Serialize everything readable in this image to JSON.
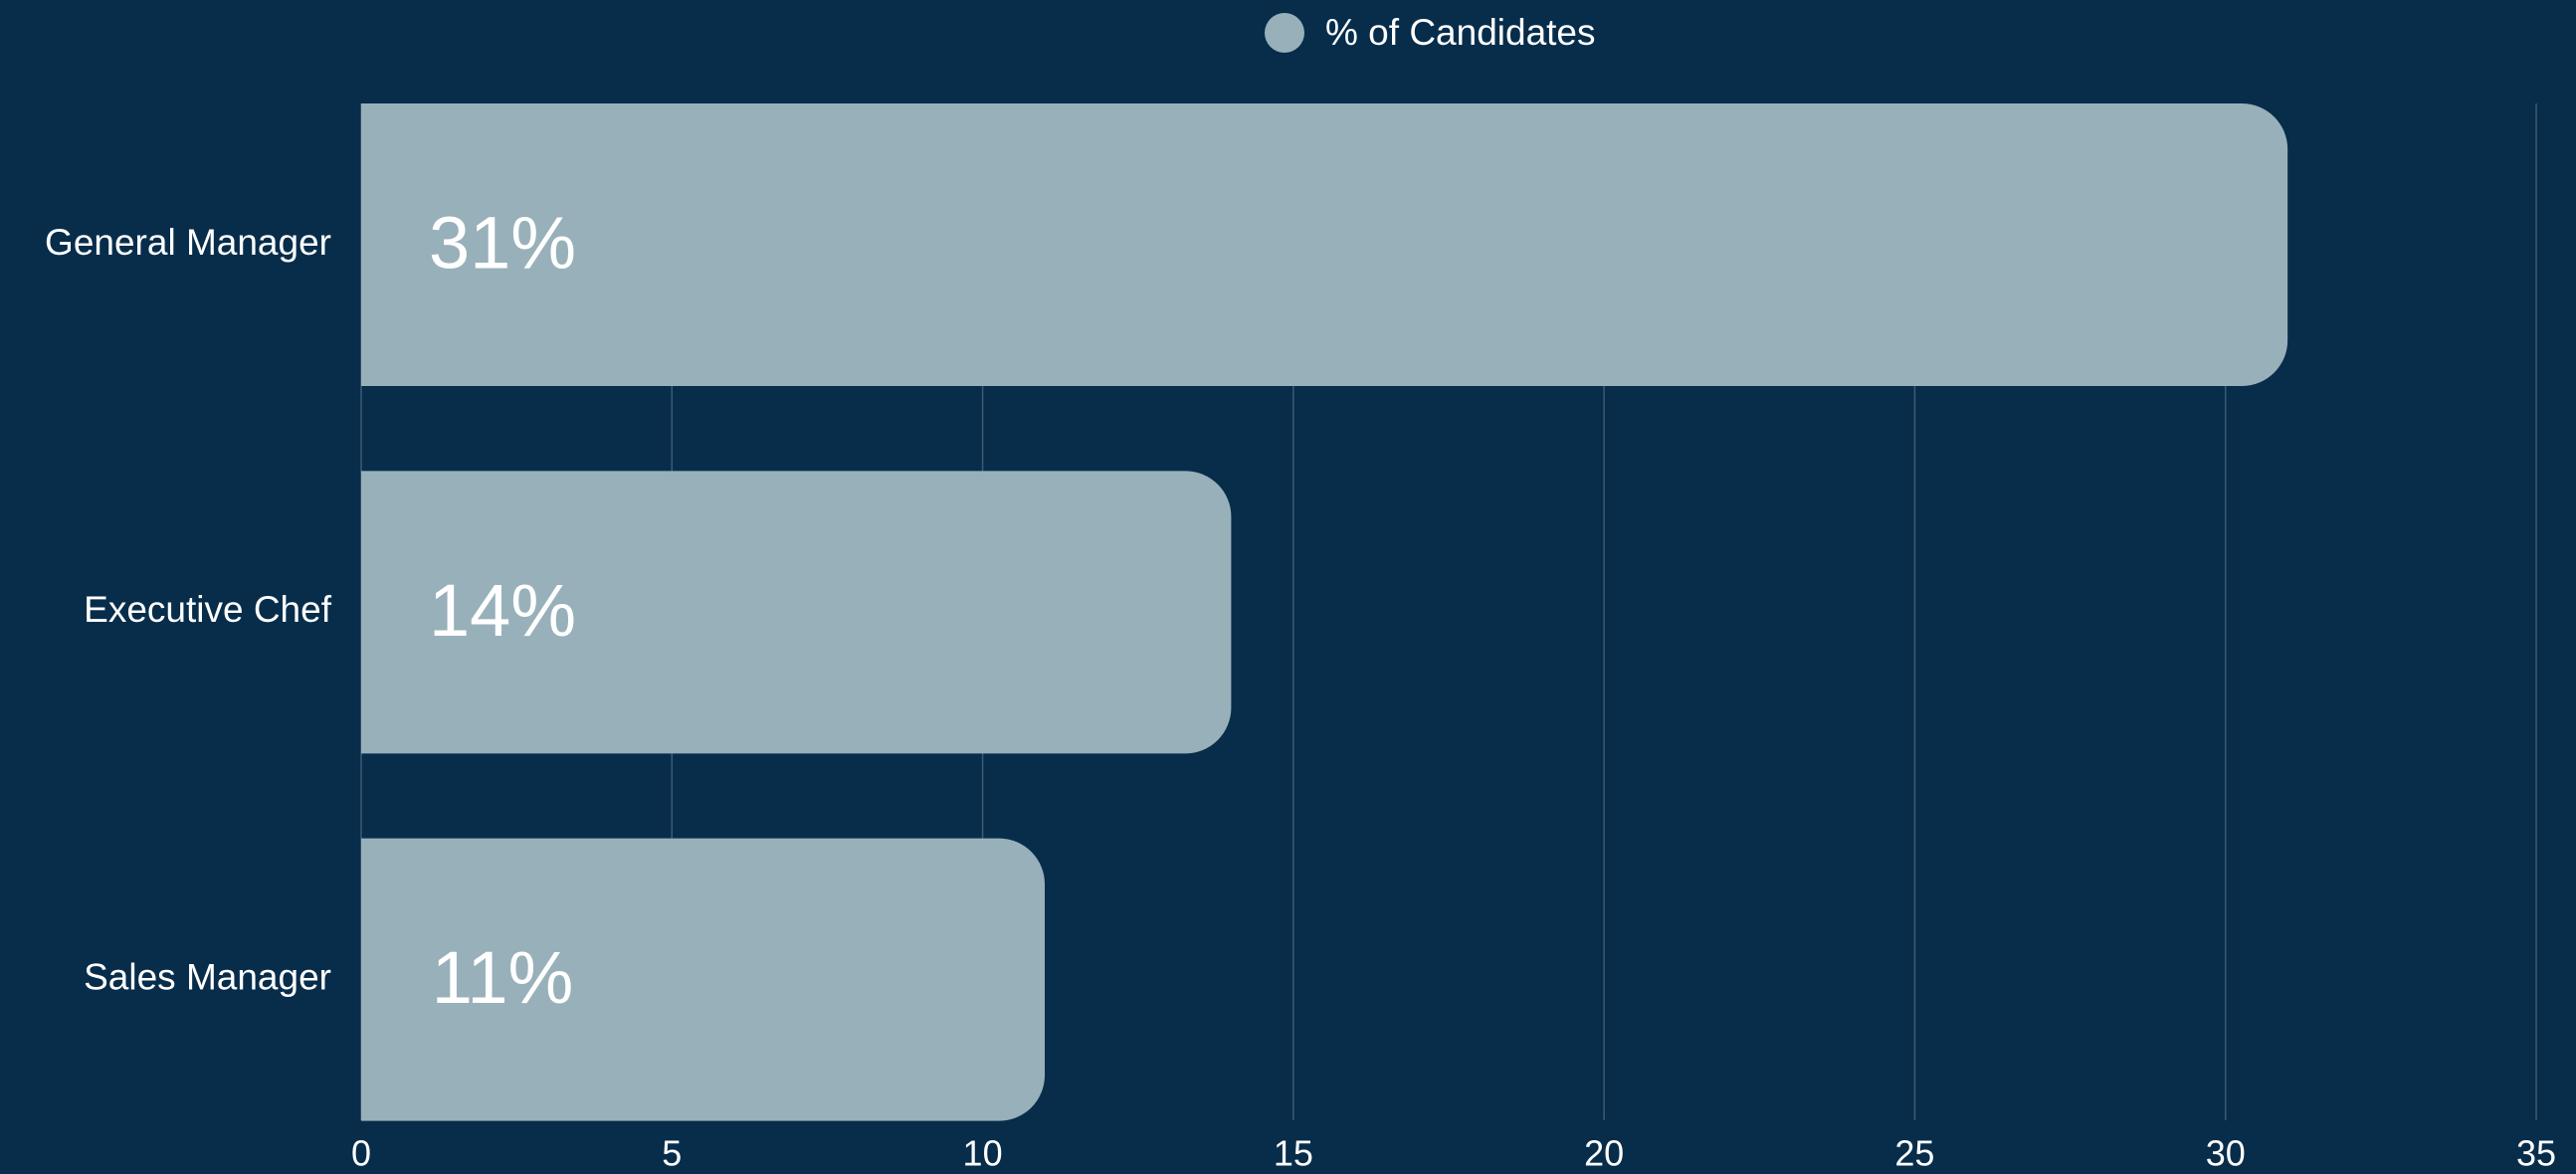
{
  "chart_data": {
    "type": "bar",
    "orientation": "horizontal",
    "categories": [
      "General Manager",
      "Executive Chef",
      "Sales Manager"
    ],
    "series": [
      {
        "name": "% of Candidates",
        "color": "#98b0b9",
        "values": [
          31,
          14,
          11
        ],
        "value_labels": [
          "31%",
          "14%",
          "11%"
        ]
      }
    ],
    "xlim": [
      0,
      35
    ],
    "xticks": [
      0,
      5,
      10,
      15,
      20,
      25,
      30,
      35
    ],
    "grid": true,
    "legend": "top"
  }
}
